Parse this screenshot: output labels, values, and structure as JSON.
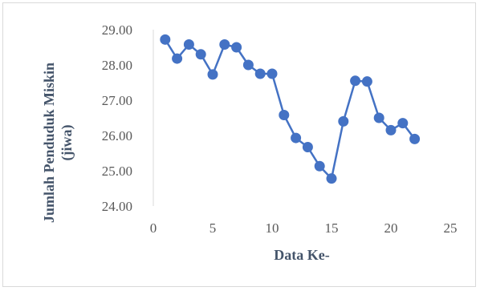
{
  "chart_data": {
    "type": "line",
    "title": "",
    "xlabel": "Data Ke-",
    "ylabel_lines": [
      "Jumlah Penduduk Miskin",
      "(jiwa)"
    ],
    "xlim": [
      0,
      25
    ],
    "ylim": [
      24,
      29
    ],
    "x_ticks": [
      "0",
      "5",
      "10",
      "15",
      "20",
      "25"
    ],
    "y_ticks": [
      "24.00",
      "25.00",
      "26.00",
      "27.00",
      "28.00",
      "29.00"
    ],
    "grid": false,
    "legend": "none",
    "series": [
      {
        "color": "#4472c4",
        "x": [
          1,
          2,
          3,
          4,
          5,
          6,
          7,
          8,
          9,
          10,
          11,
          12,
          13,
          14,
          15,
          16,
          17,
          18,
          19,
          20,
          21,
          22
        ],
        "y": [
          28.72,
          28.18,
          28.58,
          28.3,
          27.73,
          28.58,
          28.5,
          28.0,
          27.75,
          27.75,
          26.58,
          25.93,
          25.67,
          25.13,
          24.78,
          26.4,
          27.55,
          27.53,
          26.5,
          26.15,
          26.35,
          25.9
        ]
      }
    ]
  }
}
